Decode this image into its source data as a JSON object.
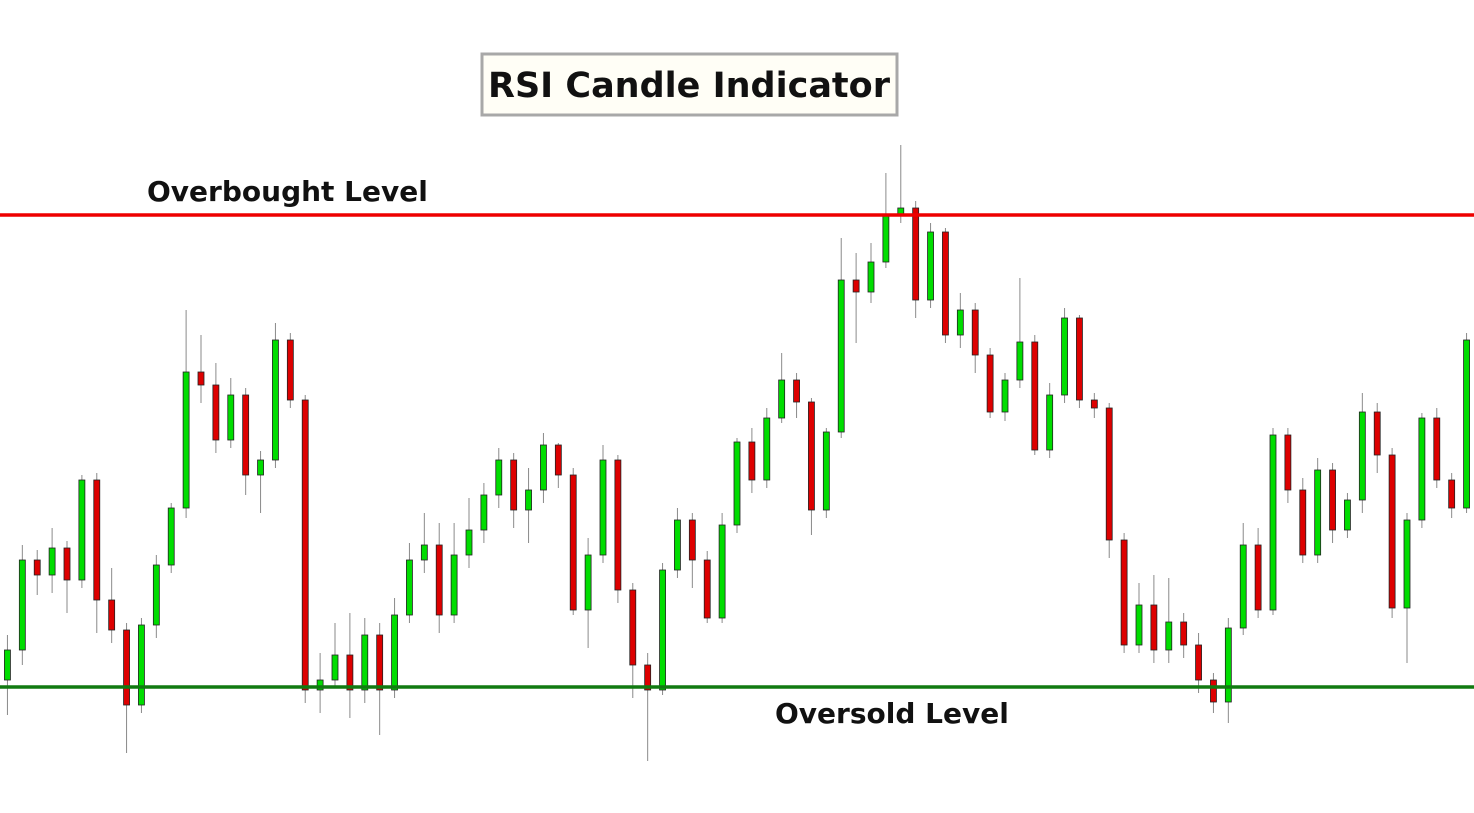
{
  "chart_data": {
    "type": "candlestick",
    "title": "RSI Candle Indicator",
    "ylim": [
      0,
      813
    ],
    "up_color": "#00dd00",
    "down_color": "#dd0000",
    "wick_color": "#8a8a8a",
    "levels": [
      {
        "label": "Overbought Level",
        "value": 598,
        "color": "#ee0000"
      },
      {
        "label": "Oversold Level",
        "value": 126,
        "color": "#117a11"
      }
    ],
    "open": [
      133,
      163,
      253,
      238,
      265,
      233,
      333,
      213,
      183,
      108,
      188,
      248,
      305,
      441,
      428,
      373,
      418,
      338,
      353,
      473,
      413,
      123,
      133,
      158,
      123,
      178,
      123,
      198,
      253,
      268,
      198,
      258,
      283,
      318,
      353,
      303,
      323,
      368,
      338,
      203,
      258,
      353,
      223,
      148,
      123,
      243,
      293,
      253,
      195,
      288,
      371,
      333,
      395,
      433,
      411,
      303,
      381,
      533,
      521,
      551,
      598,
      605,
      513,
      581,
      478,
      503,
      458,
      401,
      433,
      471,
      363,
      418,
      495,
      413,
      405,
      273,
      168,
      208,
      163,
      191,
      168,
      133,
      111,
      185,
      268,
      203,
      378,
      323,
      258,
      343,
      283,
      313,
      401,
      358,
      205,
      293,
      395,
      333,
      305
    ],
    "high": [
      178,
      268,
      263,
      285,
      272,
      338,
      340,
      245,
      190,
      195,
      258,
      310,
      503,
      478,
      450,
      435,
      425,
      362,
      490,
      480,
      418,
      160,
      190,
      200,
      195,
      190,
      215,
      270,
      300,
      290,
      290,
      315,
      330,
      365,
      360,
      345,
      380,
      370,
      345,
      275,
      368,
      358,
      230,
      160,
      250,
      305,
      300,
      262,
      300,
      375,
      385,
      405,
      460,
      440,
      415,
      385,
      575,
      560,
      570,
      640,
      668,
      612,
      590,
      585,
      520,
      510,
      465,
      440,
      535,
      478,
      430,
      505,
      498,
      420,
      410,
      280,
      230,
      238,
      235,
      200,
      180,
      140,
      195,
      290,
      285,
      385,
      385,
      335,
      355,
      350,
      320,
      420,
      410,
      365,
      300,
      400,
      405,
      340,
      480
    ],
    "low": [
      98,
      148,
      218,
      220,
      200,
      225,
      180,
      170,
      60,
      100,
      175,
      240,
      295,
      410,
      360,
      365,
      318,
      300,
      345,
      405,
      110,
      100,
      125,
      95,
      110,
      78,
      115,
      190,
      240,
      180,
      190,
      245,
      270,
      305,
      285,
      270,
      310,
      325,
      198,
      165,
      250,
      210,
      115,
      52,
      118,
      235,
      225,
      190,
      190,
      280,
      320,
      325,
      390,
      395,
      278,
      295,
      375,
      470,
      510,
      545,
      590,
      495,
      505,
      470,
      465,
      440,
      395,
      392,
      425,
      358,
      355,
      410,
      405,
      395,
      255,
      160,
      160,
      150,
      150,
      155,
      120,
      100,
      90,
      178,
      195,
      198,
      310,
      250,
      250,
      270,
      275,
      300,
      340,
      195,
      150,
      285,
      325,
      295,
      300
    ],
    "close": [
      163,
      253,
      238,
      265,
      233,
      333,
      213,
      183,
      108,
      188,
      248,
      305,
      441,
      428,
      373,
      418,
      338,
      353,
      473,
      413,
      123,
      133,
      158,
      123,
      178,
      123,
      198,
      253,
      268,
      198,
      258,
      283,
      318,
      353,
      303,
      323,
      368,
      338,
      203,
      258,
      353,
      223,
      148,
      123,
      243,
      293,
      253,
      195,
      288,
      371,
      333,
      395,
      433,
      411,
      303,
      381,
      533,
      521,
      551,
      598,
      605,
      513,
      581,
      478,
      503,
      458,
      401,
      433,
      471,
      363,
      418,
      495,
      413,
      405,
      273,
      168,
      208,
      163,
      191,
      168,
      133,
      111,
      185,
      268,
      203,
      378,
      323,
      258,
      343,
      283,
      313,
      401,
      358,
      205,
      293,
      395,
      333,
      305,
      473
    ]
  }
}
